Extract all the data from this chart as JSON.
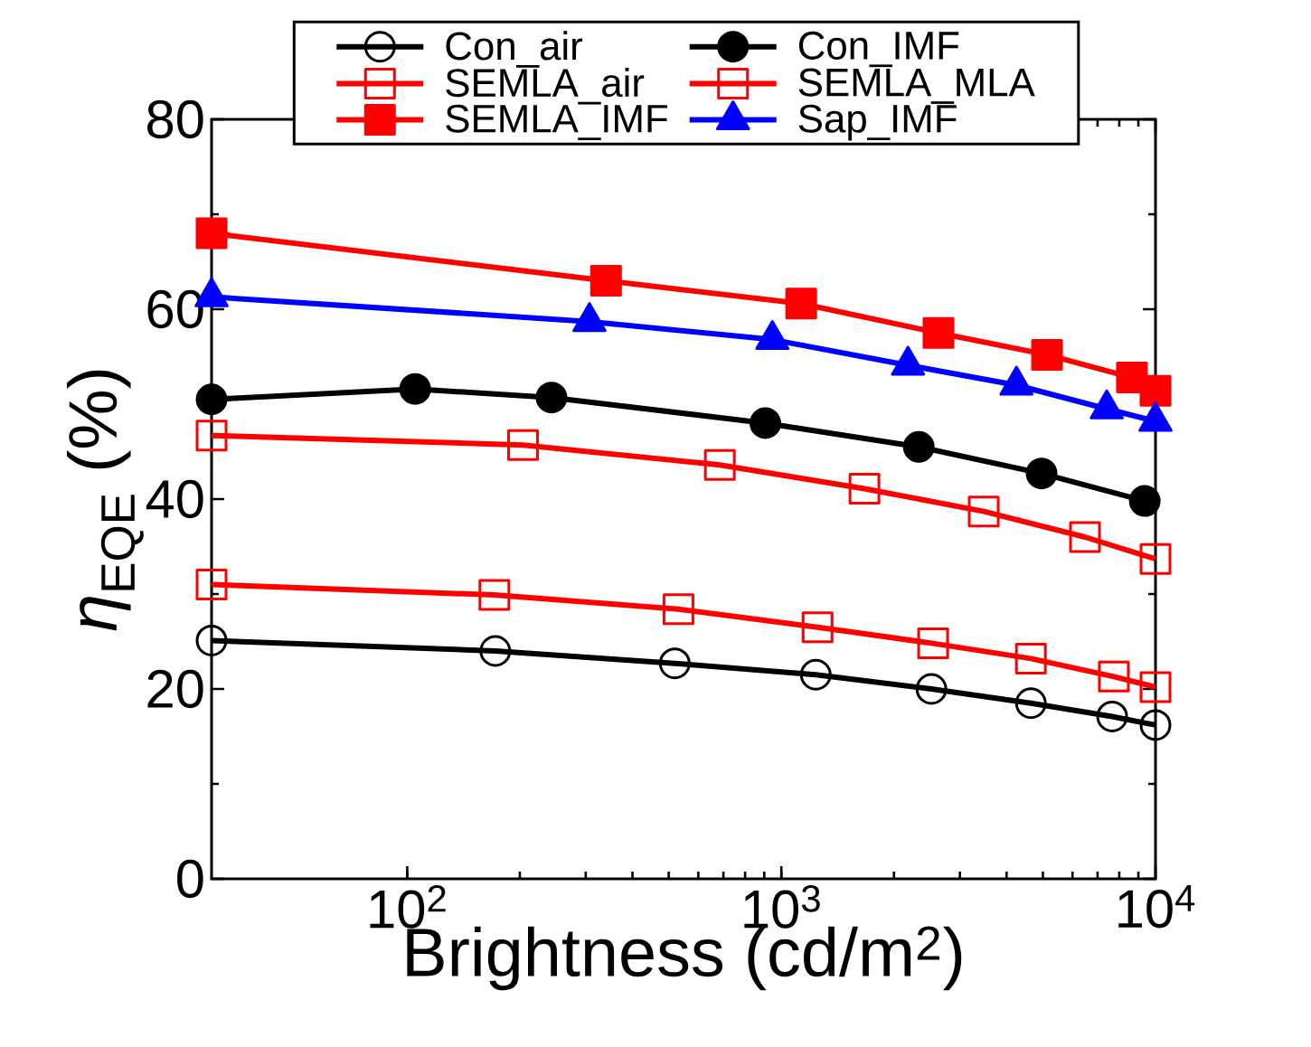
{
  "chart_data": {
    "type": "line",
    "xlabel": "Brightness (cd/m$^{2}$)",
    "ylabel": "*η*$_{EQE}$ (%)",
    "log": "x",
    "xlim": [
      30,
      10000
    ],
    "xticks": [
      {
        "value": 100,
        "label": "10$^{2}$"
      },
      {
        "value": 1000,
        "label": "10$^{3}$"
      },
      {
        "value": 10000,
        "label": "10$^{4}$"
      }
    ],
    "ylim": [
      0,
      80
    ],
    "yticks": [
      0,
      20,
      40,
      60,
      80
    ],
    "grid": false,
    "legend": "top right",
    "line_style": "solid",
    "series": [
      {
        "name": "Con_air",
        "color": "#000000",
        "marker": "circle",
        "x": [
          30,
          172,
          519,
          1236,
          2518,
          4645,
          7660,
          10000
        ],
        "values": [
          25.1,
          24.0,
          22.7,
          21.5,
          20.0,
          18.5,
          17.1,
          16.2
        ]
      },
      {
        "name": "Con_IMF",
        "color": "#000000",
        "marker": "circle",
        "x": [
          30,
          105,
          243,
          906,
          2330,
          4960,
          9360
        ],
        "values": [
          50.5,
          51.6,
          50.7,
          48.0,
          45.5,
          42.7,
          39.8
        ]
      },
      {
        "name": "SEMLA_air",
        "color": "#ff0000",
        "marker": "square",
        "x": [
          30,
          171,
          531,
          1250,
          2545,
          4645,
          7740,
          10000
        ],
        "values": [
          31.0,
          29.9,
          28.4,
          26.5,
          24.8,
          23.2,
          21.3,
          20.2
        ]
      },
      {
        "name": "SEMLA_MLA",
        "color": "#ff0000",
        "marker": "square",
        "x": [
          30,
          204,
          685,
          1668,
          3475,
          6480,
          10000
        ],
        "values": [
          46.7,
          45.7,
          43.6,
          41.1,
          38.7,
          36.0,
          33.7
        ]
      },
      {
        "name": "SEMLA_IMF",
        "color": "#ff0000",
        "marker": "square",
        "x": [
          30,
          340,
          1130,
          2630,
          5130,
          8650,
          10000
        ],
        "values": [
          68.0,
          63.0,
          60.6,
          57.5,
          55.2,
          52.8,
          51.4
        ]
      },
      {
        "name": "Sap_IMF",
        "color": "#0000ff",
        "marker": "triangle",
        "x": [
          30,
          307,
          946,
          2180,
          4250,
          7410,
          10000
        ],
        "values": [
          61.3,
          58.7,
          56.8,
          54.1,
          52.0,
          49.5,
          48.2
        ]
      }
    ]
  }
}
